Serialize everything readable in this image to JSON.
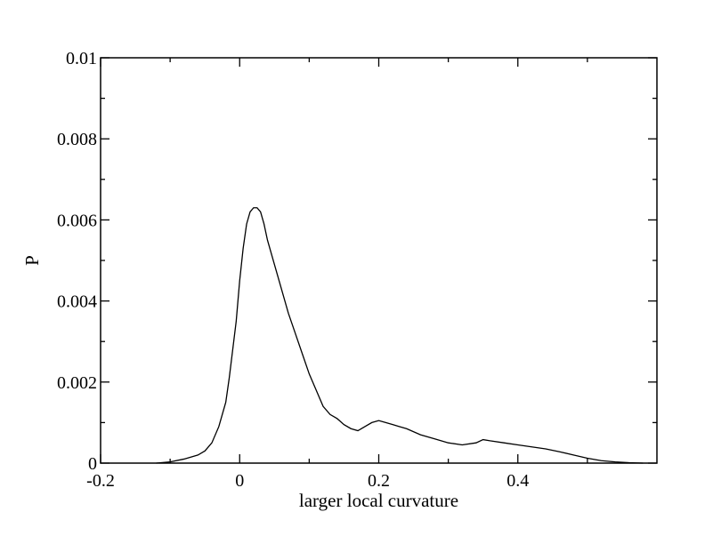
{
  "chart_data": {
    "type": "line",
    "title": "",
    "xlabel": "larger local curvature",
    "ylabel": "P",
    "xlim": [
      -0.2,
      0.6
    ],
    "ylim": [
      0,
      0.01
    ],
    "x_ticks": [
      -0.2,
      0,
      0.2,
      0.4
    ],
    "x_tick_labels": [
      "-0.2",
      "0",
      "0.2",
      "0.4"
    ],
    "y_ticks": [
      0,
      0.002,
      0.004,
      0.006,
      0.008,
      0.01
    ],
    "y_tick_labels": [
      "0",
      "0.002",
      "0.004",
      "0.006",
      "0.008",
      "0.01"
    ],
    "grid": false,
    "legend": false,
    "line_color": "#000000",
    "series": [
      {
        "x": [
          -0.12,
          -0.1,
          -0.08,
          -0.06,
          -0.05,
          -0.04,
          -0.03,
          -0.02,
          -0.015,
          -0.01,
          -0.005,
          0,
          0.005,
          0.01,
          0.015,
          0.02,
          0.025,
          0.03,
          0.035,
          0.04,
          0.05,
          0.06,
          0.07,
          0.08,
          0.09,
          0.1,
          0.11,
          0.12,
          0.13,
          0.14,
          0.15,
          0.16,
          0.17,
          0.18,
          0.19,
          0.2,
          0.21,
          0.22,
          0.23,
          0.24,
          0.26,
          0.28,
          0.3,
          0.32,
          0.34,
          0.35,
          0.36,
          0.38,
          0.4,
          0.42,
          0.44,
          0.46,
          0.48,
          0.5,
          0.52,
          0.54,
          0.56,
          0.58
        ],
        "y": [
          0.0,
          3e-05,
          0.0001,
          0.0002,
          0.0003,
          0.0005,
          0.0009,
          0.0015,
          0.0021,
          0.0028,
          0.0035,
          0.0045,
          0.0053,
          0.0059,
          0.0062,
          0.0063,
          0.0063,
          0.0062,
          0.0059,
          0.0055,
          0.0049,
          0.0043,
          0.0037,
          0.0032,
          0.0027,
          0.0022,
          0.0018,
          0.0014,
          0.0012,
          0.0011,
          0.00095,
          0.00085,
          0.0008,
          0.0009,
          0.001,
          0.00105,
          0.001,
          0.00095,
          0.0009,
          0.00085,
          0.0007,
          0.0006,
          0.0005,
          0.00045,
          0.0005,
          0.00058,
          0.00055,
          0.0005,
          0.00045,
          0.0004,
          0.00035,
          0.00028,
          0.0002,
          0.00012,
          6e-05,
          3e-05,
          1e-05,
          0.0
        ]
      }
    ]
  }
}
